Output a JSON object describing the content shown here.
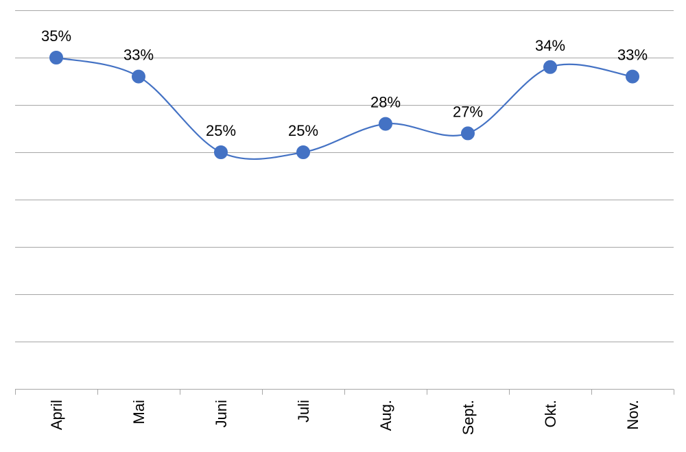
{
  "chart_data": {
    "type": "line",
    "smooth": true,
    "categories": [
      "April",
      "Mai",
      "Juni",
      "Juli",
      "Aug.",
      "Sept.",
      "Okt.",
      "Nov."
    ],
    "series": [
      {
        "values": [
          35,
          33,
          25,
          25,
          28,
          27,
          34,
          33
        ],
        "data_labels": [
          "35%",
          "33%",
          "25%",
          "25%",
          "28%",
          "27%",
          "34%",
          "33%"
        ],
        "color": "#4472C4"
      }
    ],
    "ylim": [
      0,
      40
    ],
    "y_tick_labels_visible": false,
    "x_tick_label_orientation": "vertical",
    "grid": true,
    "legend": "none"
  }
}
